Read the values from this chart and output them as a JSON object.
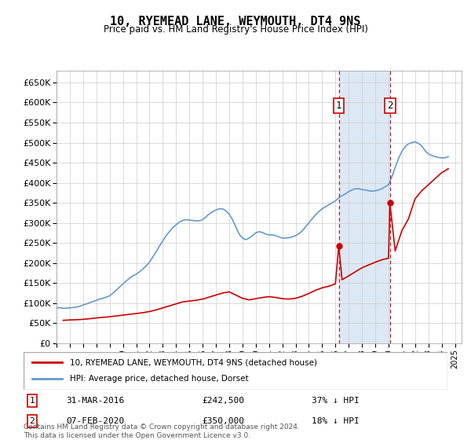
{
  "title": "10, RYEMEAD LANE, WEYMOUTH, DT4 9NS",
  "subtitle": "Price paid vs. HM Land Registry's House Price Index (HPI)",
  "ylabel_ticks": [
    "£0",
    "£50K",
    "£100K",
    "£150K",
    "£200K",
    "£250K",
    "£300K",
    "£350K",
    "£400K",
    "£450K",
    "£500K",
    "£550K",
    "£600K",
    "£650K"
  ],
  "ytick_values": [
    0,
    50000,
    100000,
    150000,
    200000,
    250000,
    300000,
    350000,
    400000,
    450000,
    500000,
    550000,
    600000,
    650000
  ],
  "xlim_start": 1995.0,
  "xlim_end": 2025.5,
  "ylim": [
    0,
    680000
  ],
  "legend_line1": "10, RYEMEAD LANE, WEYMOUTH, DT4 9NS (detached house)",
  "legend_line2": "HPI: Average price, detached house, Dorset",
  "marker1_label": "1",
  "marker1_date": "31-MAR-2016",
  "marker1_price": "£242,500",
  "marker1_pct": "37% ↓ HPI",
  "marker1_x": 2016.25,
  "marker1_y": 242500,
  "marker2_label": "2",
  "marker2_date": "07-FEB-2020",
  "marker2_price": "£350,000",
  "marker2_pct": "18% ↓ HPI",
  "marker2_x": 2020.1,
  "marker2_y": 350000,
  "copyright": "Contains HM Land Registry data © Crown copyright and database right 2024.\nThis data is licensed under the Open Government Licence v3.0.",
  "red_color": "#cc0000",
  "blue_color": "#6699cc",
  "shade_color": "#dde8f5",
  "grid_color": "#cccccc",
  "marker_box_color": "#cc0000",
  "hpi_years": [
    1995.0,
    1995.25,
    1995.5,
    1995.75,
    1996.0,
    1996.25,
    1996.5,
    1996.75,
    1997.0,
    1997.25,
    1997.5,
    1997.75,
    1998.0,
    1998.25,
    1998.5,
    1998.75,
    1999.0,
    1999.25,
    1999.5,
    1999.75,
    2000.0,
    2000.25,
    2000.5,
    2000.75,
    2001.0,
    2001.25,
    2001.5,
    2001.75,
    2002.0,
    2002.25,
    2002.5,
    2002.75,
    2003.0,
    2003.25,
    2003.5,
    2003.75,
    2004.0,
    2004.25,
    2004.5,
    2004.75,
    2005.0,
    2005.25,
    2005.5,
    2005.75,
    2006.0,
    2006.25,
    2006.5,
    2006.75,
    2007.0,
    2007.25,
    2007.5,
    2007.75,
    2008.0,
    2008.25,
    2008.5,
    2008.75,
    2009.0,
    2009.25,
    2009.5,
    2009.75,
    2010.0,
    2010.25,
    2010.5,
    2010.75,
    2011.0,
    2011.25,
    2011.5,
    2011.75,
    2012.0,
    2012.25,
    2012.5,
    2012.75,
    2013.0,
    2013.25,
    2013.5,
    2013.75,
    2014.0,
    2014.25,
    2014.5,
    2014.75,
    2015.0,
    2015.25,
    2015.5,
    2015.75,
    2016.0,
    2016.25,
    2016.5,
    2016.75,
    2017.0,
    2017.25,
    2017.5,
    2017.75,
    2018.0,
    2018.25,
    2018.5,
    2018.75,
    2019.0,
    2019.25,
    2019.5,
    2019.75,
    2020.0,
    2020.25,
    2020.5,
    2020.75,
    2021.0,
    2021.25,
    2021.5,
    2021.75,
    2022.0,
    2022.25,
    2022.5,
    2022.75,
    2023.0,
    2023.25,
    2023.5,
    2023.75,
    2024.0,
    2024.25,
    2024.5
  ],
  "hpi_values": [
    88000,
    88500,
    87000,
    87500,
    88000,
    89000,
    90000,
    92000,
    95000,
    98000,
    101000,
    104000,
    107000,
    110000,
    112000,
    115000,
    118000,
    125000,
    132000,
    140000,
    148000,
    155000,
    162000,
    168000,
    172000,
    178000,
    185000,
    193000,
    202000,
    215000,
    228000,
    242000,
    255000,
    268000,
    278000,
    288000,
    295000,
    302000,
    306000,
    308000,
    307000,
    306000,
    305000,
    305000,
    308000,
    315000,
    322000,
    328000,
    332000,
    335000,
    335000,
    330000,
    322000,
    308000,
    290000,
    272000,
    262000,
    258000,
    262000,
    268000,
    275000,
    278000,
    276000,
    272000,
    270000,
    270000,
    268000,
    265000,
    262000,
    262000,
    263000,
    265000,
    268000,
    273000,
    280000,
    290000,
    300000,
    310000,
    320000,
    328000,
    335000,
    340000,
    345000,
    350000,
    355000,
    362000,
    368000,
    372000,
    378000,
    382000,
    385000,
    385000,
    383000,
    382000,
    380000,
    379000,
    380000,
    382000,
    385000,
    390000,
    395000,
    415000,
    438000,
    460000,
    478000,
    490000,
    497000,
    500000,
    502000,
    498000,
    492000,
    480000,
    472000,
    468000,
    465000,
    463000,
    462000,
    462000,
    465000
  ],
  "red_years": [
    1995.5,
    1996.0,
    1996.5,
    1997.0,
    1997.5,
    1998.0,
    1998.5,
    1999.0,
    1999.5,
    2000.0,
    2000.5,
    2001.0,
    2001.5,
    2002.0,
    2002.5,
    2003.0,
    2003.5,
    2004.0,
    2004.5,
    2005.0,
    2005.5,
    2006.0,
    2006.5,
    2007.0,
    2007.5,
    2008.0,
    2008.5,
    2009.0,
    2009.5,
    2010.0,
    2010.5,
    2011.0,
    2011.5,
    2012.0,
    2012.5,
    2013.0,
    2013.5,
    2014.0,
    2014.5,
    2015.0,
    2015.5,
    2016.0,
    2016.25,
    2016.5,
    2017.0,
    2017.5,
    2018.0,
    2018.5,
    2019.0,
    2019.5,
    2020.0,
    2020.1,
    2020.5,
    2021.0,
    2021.5,
    2022.0,
    2022.5,
    2023.0,
    2023.5,
    2024.0,
    2024.5
  ],
  "red_values": [
    57000,
    58000,
    58500,
    59500,
    61000,
    63000,
    64500,
    66000,
    68000,
    70000,
    72000,
    74000,
    76000,
    79000,
    83000,
    88000,
    93000,
    98000,
    103000,
    105000,
    107000,
    110000,
    115000,
    120000,
    125000,
    128000,
    120000,
    112000,
    108000,
    111000,
    114000,
    116000,
    114000,
    111000,
    110000,
    112000,
    117000,
    124000,
    132000,
    138000,
    142000,
    148000,
    242500,
    158000,
    168000,
    178000,
    188000,
    195000,
    202000,
    208000,
    212000,
    350000,
    230000,
    280000,
    310000,
    360000,
    380000,
    395000,
    410000,
    425000,
    435000
  ]
}
